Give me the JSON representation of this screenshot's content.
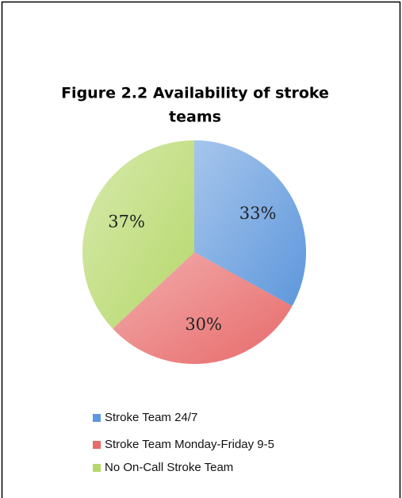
{
  "chart_data": {
    "type": "pie",
    "title": [
      "Figure 2.2 Availability of stroke",
      "teams"
    ],
    "categories": [
      "Stroke Team 24/7",
      "Stroke Team Monday-Friday 9-5",
      "No On-Call Stroke Team"
    ],
    "values": [
      33,
      30,
      37
    ],
    "value_labels": [
      "33%",
      "30%",
      "37%"
    ],
    "colors": [
      "#5e97dc",
      "#e86a6a",
      "#b6d86a"
    ],
    "legend": "bottom"
  }
}
